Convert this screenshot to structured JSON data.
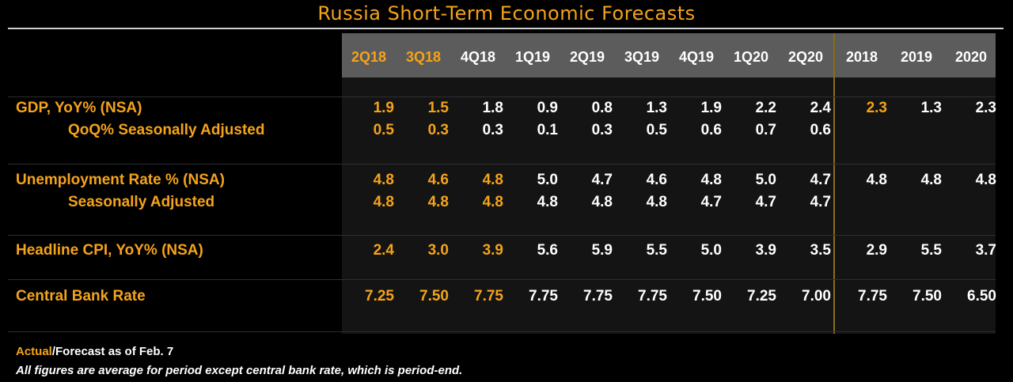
{
  "title": "Russia Short-Term Economic Forecasts",
  "columns": [
    {
      "label": "2Q18",
      "actual": true
    },
    {
      "label": "3Q18",
      "actual": true
    },
    {
      "label": "4Q18",
      "actual": false
    },
    {
      "label": "1Q19",
      "actual": false
    },
    {
      "label": "2Q19",
      "actual": false
    },
    {
      "label": "3Q19",
      "actual": false
    },
    {
      "label": "4Q19",
      "actual": false
    },
    {
      "label": "1Q20",
      "actual": false
    },
    {
      "label": "2Q20",
      "actual": false
    },
    {
      "label": "2018",
      "actual": false
    },
    {
      "label": "2019",
      "actual": false
    },
    {
      "label": "2020",
      "actual": false
    }
  ],
  "rows": [
    {
      "label": "GDP, YoY% (NSA)",
      "sub": false,
      "values": [
        "1.9",
        "1.5",
        "1.8",
        "0.9",
        "0.8",
        "1.3",
        "1.9",
        "2.2",
        "2.4",
        "2.3",
        "1.3",
        "2.3"
      ],
      "actual_count": 2,
      "actual_extra": [
        9
      ]
    },
    {
      "label": "QoQ% Seasonally Adjusted",
      "sub": true,
      "values": [
        "0.5",
        "0.3",
        "0.3",
        "0.1",
        "0.3",
        "0.5",
        "0.6",
        "0.7",
        "0.6",
        "",
        "",
        ""
      ],
      "actual_count": 2,
      "actual_extra": []
    },
    {
      "label": "Unemployment Rate % (NSA)",
      "sub": false,
      "values": [
        "4.8",
        "4.6",
        "4.8",
        "5.0",
        "4.7",
        "4.6",
        "4.8",
        "5.0",
        "4.7",
        "4.8",
        "4.8",
        "4.8"
      ],
      "actual_count": 3,
      "actual_extra": []
    },
    {
      "label": "Seasonally Adjusted",
      "sub": true,
      "values": [
        "4.8",
        "4.8",
        "4.8",
        "4.8",
        "4.8",
        "4.8",
        "4.7",
        "4.7",
        "4.7",
        "",
        "",
        ""
      ],
      "actual_count": 3,
      "actual_extra": []
    },
    {
      "label": "Headline CPI, YoY% (NSA)",
      "sub": false,
      "values": [
        "2.4",
        "3.0",
        "3.9",
        "5.6",
        "5.9",
        "5.5",
        "5.0",
        "3.9",
        "3.5",
        "2.9",
        "5.5",
        "3.7"
      ],
      "actual_count": 3,
      "actual_extra": []
    },
    {
      "label": "Central Bank Rate",
      "sub": false,
      "values": [
        "7.25",
        "7.50",
        "7.75",
        "7.75",
        "7.75",
        "7.75",
        "7.50",
        "7.25",
        "7.00",
        "7.75",
        "7.50",
        "6.50"
      ],
      "actual_count": 3,
      "actual_extra": []
    }
  ],
  "footer": {
    "actual_word": "Actual",
    "forecast_text": "/Forecast as of Feb. 7",
    "note": "All figures are average for period except central bank rate, which is period-end."
  },
  "colors": {
    "accent": "#f5a31a",
    "text": "#ffffff",
    "background": "#000000",
    "header_bar": "#5c5c5c"
  }
}
